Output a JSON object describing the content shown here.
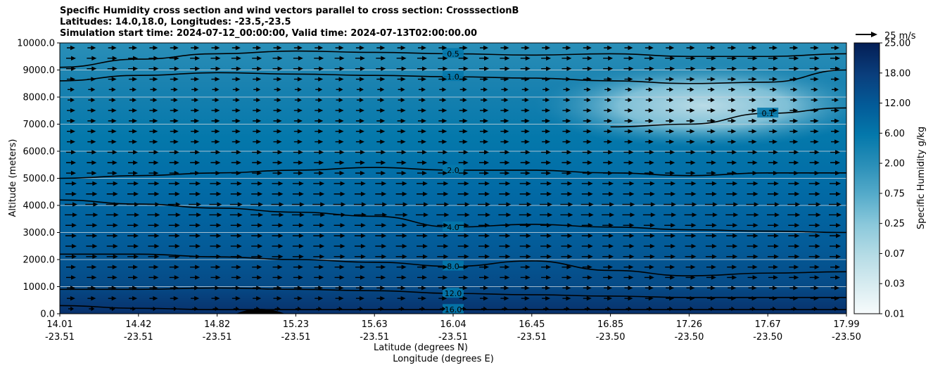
{
  "chart_data": {
    "type": "contour",
    "title_lines": [
      "Specific Humidity cross section and wind vectors parallel to cross section: CrosssectionB",
      "Latitudes: 14.0,18.0, Longitudes: -23.5,-23.5",
      "Simulation start time: 2024-07-12_00:00:00, Valid time: 2024-07-13T02:00:00.00"
    ],
    "ylabel": "Altitude (meters)",
    "xlabel_line1": "Latitude (degrees N)",
    "xlabel_line2": "Longitude (degrees E)",
    "ylim": [
      0,
      10000
    ],
    "y_ticks": [
      "0.0",
      "1000.0",
      "2000.0",
      "3000.0",
      "4000.0",
      "5000.0",
      "6000.0",
      "7000.0",
      "8000.0",
      "9000.0",
      "10000.0"
    ],
    "x_range": [
      14.01,
      17.99
    ],
    "x_ticks": [
      {
        "lat": "14.01",
        "lon": "-23.51"
      },
      {
        "lat": "14.42",
        "lon": "-23.51"
      },
      {
        "lat": "14.82",
        "lon": "-23.51"
      },
      {
        "lat": "15.23",
        "lon": "-23.51"
      },
      {
        "lat": "15.63",
        "lon": "-23.51"
      },
      {
        "lat": "16.04",
        "lon": "-23.51"
      },
      {
        "lat": "16.45",
        "lon": "-23.51"
      },
      {
        "lat": "16.85",
        "lon": "-23.50"
      },
      {
        "lat": "17.26",
        "lon": "-23.50"
      },
      {
        "lat": "17.67",
        "lon": "-23.50"
      },
      {
        "lat": "17.99",
        "lon": "-23.50"
      }
    ],
    "colorbar": {
      "label": "Specific Humidity g/kg",
      "ticks": [
        "0.01",
        "0.03",
        "0.07",
        "0.25",
        "0.75",
        "2.00",
        "6.00",
        "12.00",
        "18.00",
        "25.00"
      ]
    },
    "quiver_key": "25 m/s",
    "contours": [
      {
        "level": 16.0,
        "label": "16.0",
        "alt": [
          300,
          200,
          150,
          150,
          150,
          150,
          150,
          150,
          150,
          150,
          150
        ]
      },
      {
        "level": 12.0,
        "label": "12.0",
        "alt": [
          900,
          900,
          950,
          900,
          850,
          750,
          700,
          650,
          600,
          600,
          600
        ]
      },
      {
        "level": 8.0,
        "label": "8.0",
        "alt": [
          2200,
          2200,
          2100,
          2000,
          1900,
          1750,
          1950,
          1600,
          1400,
          1500,
          1550
        ]
      },
      {
        "level": 4.0,
        "label": "4.0",
        "alt": [
          4200,
          4050,
          3900,
          3750,
          3600,
          3200,
          3300,
          3200,
          3100,
          3050,
          3000
        ]
      },
      {
        "level": 2.0,
        "label": "2.0",
        "alt": [
          5000,
          5100,
          5200,
          5300,
          5400,
          5300,
          5300,
          5200,
          5100,
          5200,
          5200
        ]
      },
      {
        "level": 1.0,
        "label": "1.0",
        "alt": [
          8600,
          8800,
          8900,
          8850,
          8800,
          8750,
          8700,
          8600,
          8500,
          8550,
          9000
        ]
      },
      {
        "level": 0.5,
        "label": "0.5",
        "alt": [
          9100,
          9400,
          9600,
          9700,
          9650,
          9600,
          9550,
          9600,
          9500,
          9500,
          9600
        ]
      },
      {
        "level": 0.1,
        "label": "0.1",
        "alt": [
          null,
          null,
          null,
          null,
          null,
          null,
          null,
          6900,
          7000,
          7400,
          7600
        ]
      }
    ],
    "wind_u": [
      8,
      12,
      12,
      14,
      14,
      16,
      16,
      16,
      16,
      18,
      18,
      16,
      16,
      14,
      14,
      14,
      12,
      12,
      12,
      12,
      10,
      10,
      12,
      14,
      14,
      12
    ]
  }
}
